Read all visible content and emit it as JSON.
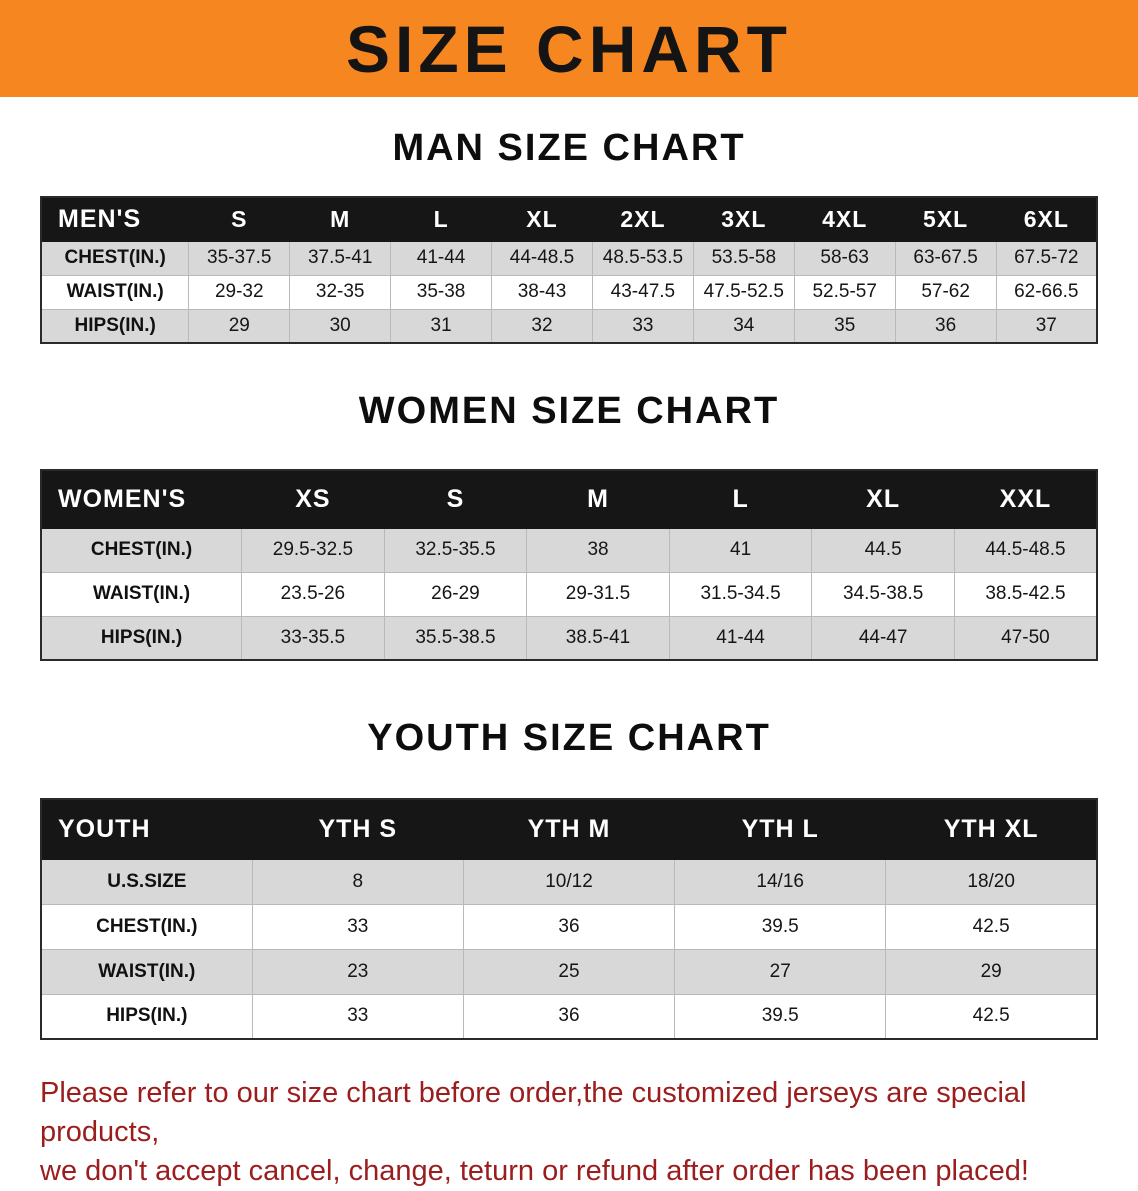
{
  "banner": {
    "title": "SIZE CHART"
  },
  "colors": {
    "banner_bg": "#f6861f",
    "table_header_bg": "#161616",
    "row_shaded_bg": "#d8d8d8",
    "note_text": "#9b1d1d"
  },
  "sections": [
    {
      "id": "men",
      "heading": "MAN SIZE CHART",
      "table": {
        "header": [
          "MEN'S",
          "S",
          "M",
          "L",
          "XL",
          "2XL",
          "3XL",
          "4XL",
          "5XL",
          "6XL"
        ],
        "rows": [
          [
            "CHEST(IN.)",
            "35-37.5",
            "37.5-41",
            "41-44",
            "44-48.5",
            "48.5-53.5",
            "53.5-58",
            "58-63",
            "63-67.5",
            "67.5-72"
          ],
          [
            "WAIST(IN.)",
            "29-32",
            "32-35",
            "35-38",
            "38-43",
            "43-47.5",
            "47.5-52.5",
            "52.5-57",
            "57-62",
            "62-66.5"
          ],
          [
            "HIPS(IN.)",
            "29",
            "30",
            "31",
            "32",
            "33",
            "34",
            "35",
            "36",
            "37"
          ]
        ]
      }
    },
    {
      "id": "women",
      "heading": "WOMEN SIZE CHART",
      "table": {
        "header": [
          "WOMEN'S",
          "XS",
          "S",
          "M",
          "L",
          "XL",
          "XXL"
        ],
        "rows": [
          [
            "CHEST(IN.)",
            "29.5-32.5",
            "32.5-35.5",
            "38",
            "41",
            "44.5",
            "44.5-48.5"
          ],
          [
            "WAIST(IN.)",
            "23.5-26",
            "26-29",
            "29-31.5",
            "31.5-34.5",
            "34.5-38.5",
            "38.5-42.5"
          ],
          [
            "HIPS(IN.)",
            "33-35.5",
            "35.5-38.5",
            "38.5-41",
            "41-44",
            "44-47",
            "47-50"
          ]
        ]
      }
    },
    {
      "id": "youth",
      "heading": "YOUTH SIZE CHART",
      "table": {
        "header": [
          "YOUTH",
          "YTH S",
          "YTH M",
          "YTH L",
          "YTH XL"
        ],
        "rows": [
          [
            "U.S.SIZE",
            "8",
            "10/12",
            "14/16",
            "18/20"
          ],
          [
            "CHEST(IN.)",
            "33",
            "36",
            "39.5",
            "42.5"
          ],
          [
            "WAIST(IN.)",
            "23",
            "25",
            "27",
            "29"
          ],
          [
            "HIPS(IN.)",
            "33",
            "36",
            "39.5",
            "42.5"
          ]
        ]
      }
    }
  ],
  "note": {
    "line1": "Please refer to our size chart before order,the customized jerseys are special products,",
    "line2": "we don't accept cancel, change, teturn or refund after order has been placed!"
  }
}
